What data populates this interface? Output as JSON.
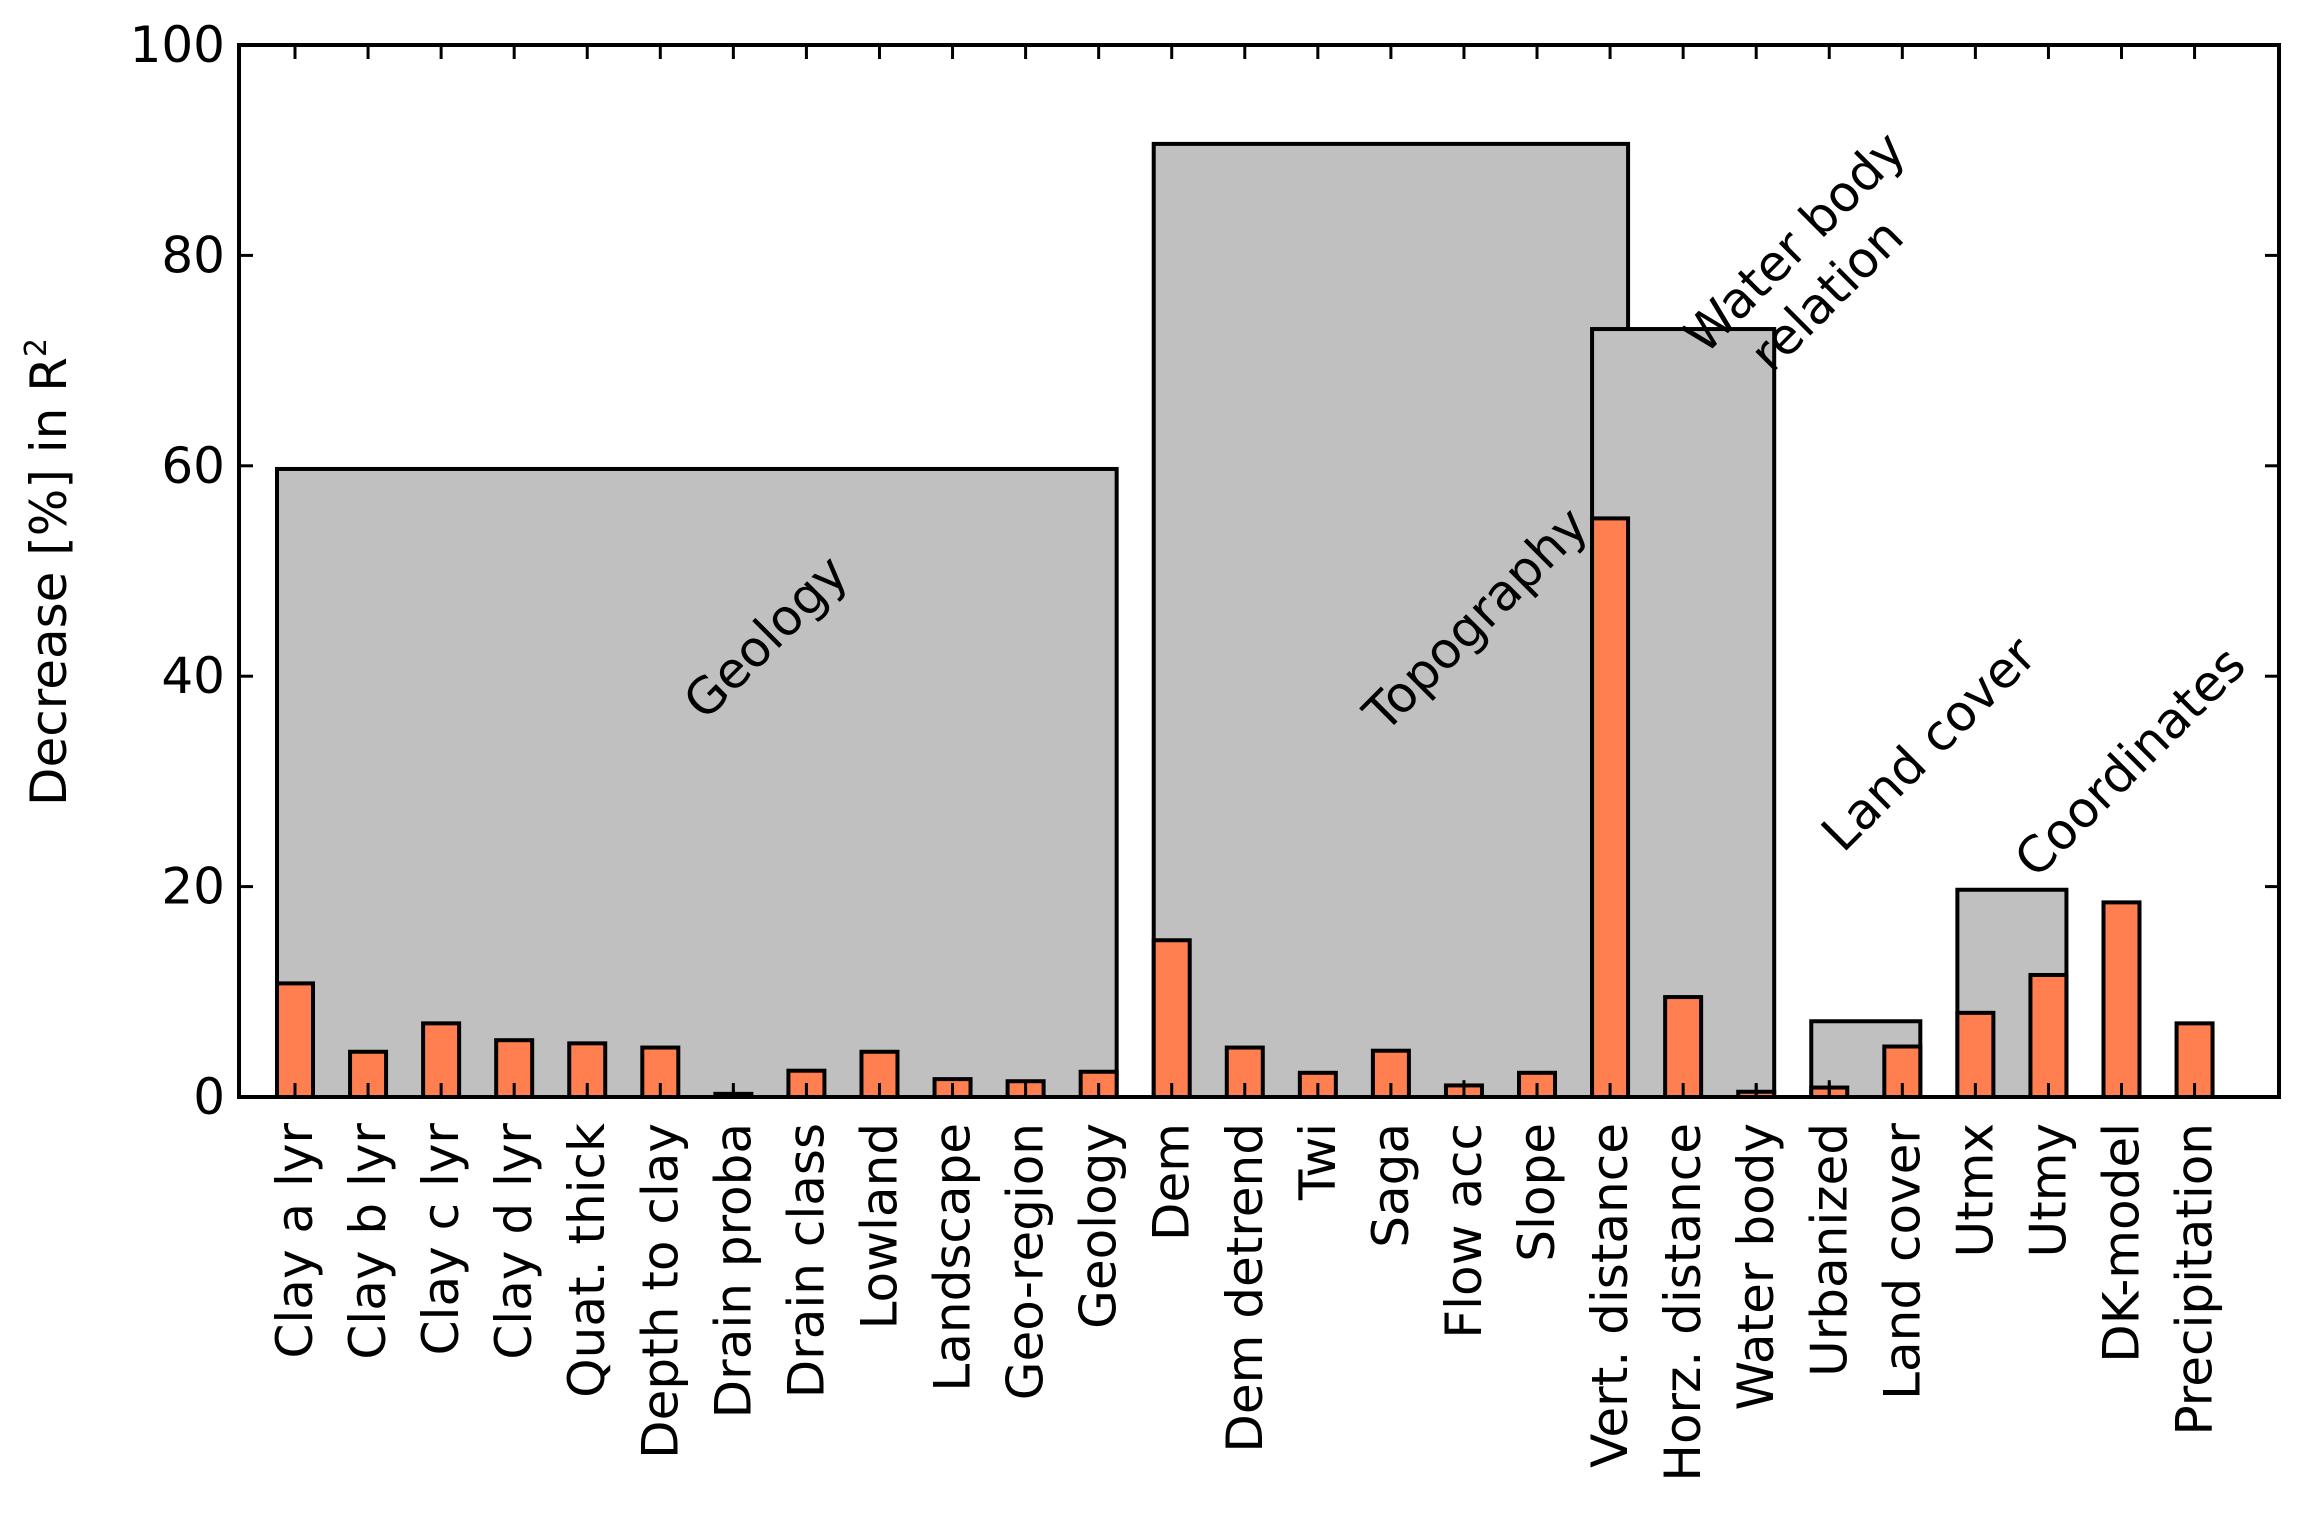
{
  "chart_data": {
    "type": "bar",
    "title": "",
    "xlabel": "",
    "ylabel": "Decrease [%] in R",
    "ylabel_superscript": "2",
    "ylim": [
      0,
      100
    ],
    "yticks": [
      0,
      20,
      40,
      60,
      80,
      100
    ],
    "grid": false,
    "legend": "none",
    "bar_color": "#ff7f50",
    "group_color": "#c0c0c0",
    "edge_color": "#000000",
    "categories": [
      "Clay a lyr",
      "Clay b lyr",
      "Clay c lyr",
      "Clay d lyr",
      "Quat. thick",
      "Depth to clay",
      "Drain proba",
      "Drain class",
      "Lowland",
      "Landscape",
      "Geo-region",
      "Geology",
      "Dem",
      "Dem detrend",
      "Twi",
      "Saga",
      "Flow acc",
      "Slope",
      "Vert. distance",
      "Horz. distance",
      "Water body",
      "Urbanized",
      "Land cover",
      "Utmx",
      "Utmy",
      "DK-model",
      "Precipitation"
    ],
    "values": [
      10.8,
      4.3,
      7.0,
      5.4,
      5.1,
      4.7,
      0.3,
      2.5,
      4.3,
      1.7,
      1.5,
      2.4,
      14.9,
      4.7,
      2.3,
      4.4,
      1.1,
      2.3,
      55.0,
      9.5,
      0.5,
      0.9,
      4.8,
      8.0,
      11.6,
      18.5,
      7.0
    ],
    "errors": [
      0,
      0,
      0,
      0,
      0,
      0,
      0.4,
      0,
      0,
      0,
      0,
      0,
      0,
      0,
      0,
      0,
      0.5,
      0,
      0,
      0,
      0.7,
      0.7,
      0,
      0,
      0,
      0,
      0
    ],
    "groups": [
      {
        "label": "Geology",
        "start": 0,
        "end": 11,
        "value": 59.7
      },
      {
        "label": "Topography",
        "start": 12,
        "end": 18,
        "value": 90.6
      },
      {
        "label": "Water body relation",
        "label_lines": [
          "Water body",
          "relation"
        ],
        "start": 18,
        "end": 20,
        "value": 73.0
      },
      {
        "label": "Land cover",
        "start": 21,
        "end": 22,
        "value": 7.2
      },
      {
        "label": "Coordinates",
        "start": 23,
        "end": 24,
        "value": 19.7
      }
    ]
  }
}
